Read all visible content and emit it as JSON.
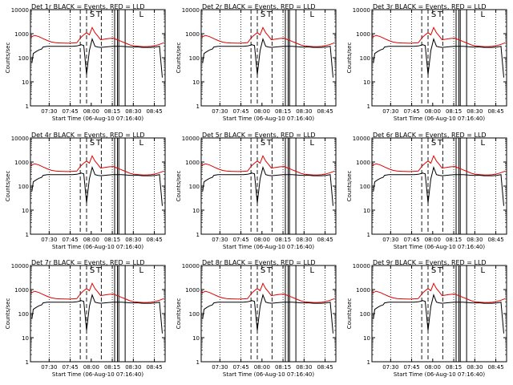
{
  "chart_data": [
    {
      "type": "line",
      "title": "Det 1r BLACK = Events, RED = LLD"
    },
    {
      "type": "line",
      "title": "Det 2r BLACK = Events, RED = LLD"
    },
    {
      "type": "line",
      "title": "Det 3r BLACK = Events, RED = LLD"
    },
    {
      "type": "line",
      "title": "Det 4r BLACK = Events, RED = LLD"
    },
    {
      "type": "line",
      "title": "Det 5r BLACK = Events, RED = LLD"
    },
    {
      "type": "line",
      "title": "Det 6r BLACK = Events, RED = LLD"
    },
    {
      "type": "line",
      "title": "Det 7r BLACK = Events, RED = LLD"
    },
    {
      "type": "line",
      "title": "Det 8r BLACK = Events, RED = LLD"
    },
    {
      "type": "line",
      "title": "Det 9r BLACK = Events, RED = LLD"
    }
  ],
  "shared": {
    "ylabel": "Counts/sec",
    "xlabel": "Start Time (06-Aug-10 07:16:40)",
    "y_scale": "log",
    "ylim": [
      1,
      10000
    ],
    "y_ticks": [
      1,
      10,
      100,
      1000,
      10000
    ],
    "x_range_minutes_after_start": [
      0,
      96
    ],
    "x_ticks": [
      {
        "label": "07:30",
        "min": 13.33
      },
      {
        "label": "07:45",
        "min": 28.33
      },
      {
        "label": "08:00",
        "min": 43.33
      },
      {
        "label": "08:15",
        "min": 58.33
      },
      {
        "label": "08:30",
        "min": 73.33
      },
      {
        "label": "08:45",
        "min": 88.33
      }
    ],
    "markers": [
      {
        "label": "S",
        "min": 44
      },
      {
        "label": "T",
        "min": 48.5
      },
      {
        "label": "L",
        "min": 79
      }
    ],
    "vlines_dotted_min": [
      13.33,
      28.33,
      58.33,
      73.33,
      88.33
    ],
    "vlines_dashed_min": [
      35.5,
      40,
      50.5
    ],
    "vlines_solid_min": [
      60,
      62,
      63,
      67.5
    ],
    "series": [
      {
        "name": "LLD",
        "color": "#e00000",
        "x": [
          0,
          3,
          6,
          9,
          12,
          15,
          18,
          21,
          24,
          27,
          30,
          33,
          36,
          38,
          40,
          42,
          44,
          46,
          48,
          50,
          53,
          56,
          59,
          62,
          65,
          68,
          71,
          74,
          77,
          80,
          83,
          86,
          89,
          92,
          95
        ],
        "y": [
          700,
          850,
          750,
          620,
          520,
          450,
          420,
          410,
          405,
          400,
          410,
          420,
          700,
          900,
          1100,
          900,
          1800,
          1100,
          800,
          560,
          600,
          630,
          650,
          560,
          470,
          400,
          340,
          310,
          300,
          290,
          290,
          300,
          320,
          360,
          420
        ]
      },
      {
        "name": "Events",
        "color": "#000000",
        "x": [
          1,
          2,
          4,
          6,
          8,
          9,
          12,
          15,
          18,
          21,
          24,
          27,
          30,
          33,
          35,
          36,
          38,
          40,
          42,
          44,
          46,
          48,
          50,
          53,
          56,
          59,
          62,
          65,
          68,
          71,
          74,
          77,
          80,
          83,
          86,
          89,
          92,
          94
        ],
        "y": [
          60,
          150,
          180,
          210,
          230,
          280,
          300,
          300,
          300,
          300,
          300,
          300,
          300,
          310,
          330,
          350,
          320,
          20,
          200,
          600,
          300,
          280,
          270,
          280,
          290,
          300,
          300,
          300,
          290,
          280,
          280,
          280,
          270,
          270,
          270,
          280,
          300,
          15
        ]
      }
    ]
  }
}
